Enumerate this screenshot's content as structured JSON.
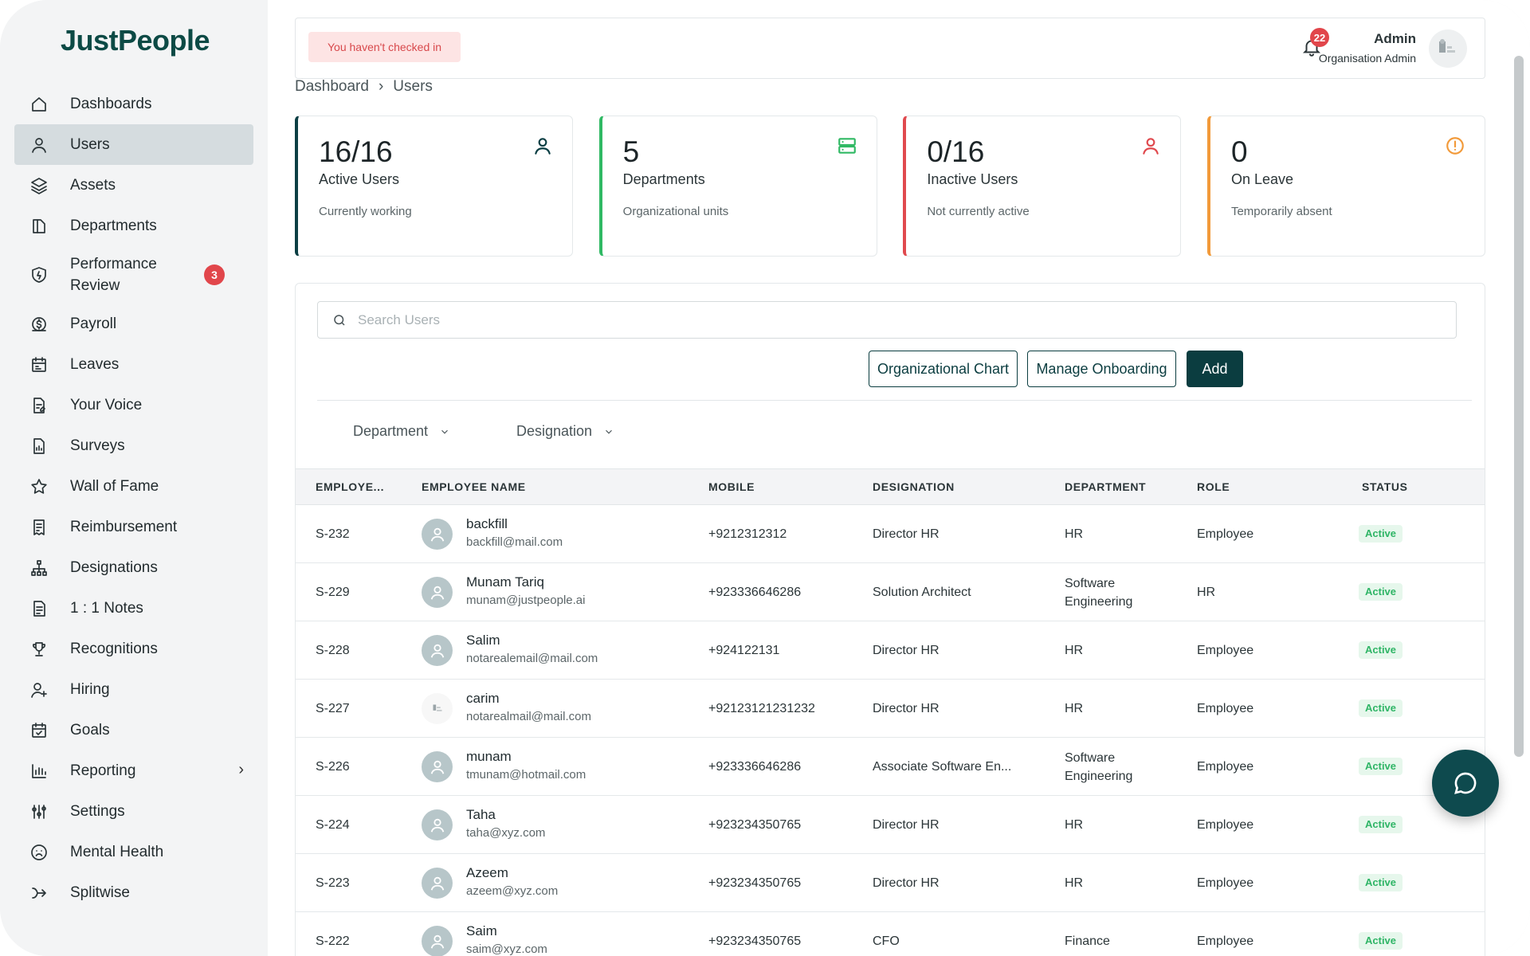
{
  "brand": {
    "name": "JustPeople",
    "color": "#0c4a45"
  },
  "sidebar": {
    "items": [
      {
        "label": "Dashboards",
        "icon": "home-icon"
      },
      {
        "label": "Users",
        "icon": "user-icon",
        "active": true
      },
      {
        "label": "Assets",
        "icon": "layers-icon"
      },
      {
        "label": "Departments",
        "icon": "book-icon"
      },
      {
        "label": "Performance Review",
        "icon": "shield-icon",
        "badge": "3"
      },
      {
        "label": "Payroll",
        "icon": "dollar-icon"
      },
      {
        "label": "Leaves",
        "icon": "calendar-icon"
      },
      {
        "label": "Your Voice",
        "icon": "document-edit-icon"
      },
      {
        "label": "Surveys",
        "icon": "document-chart-icon"
      },
      {
        "label": "Wall of Fame",
        "icon": "star-icon"
      },
      {
        "label": "Reimbursement",
        "icon": "receipt-icon"
      },
      {
        "label": "Designations",
        "icon": "hierarchy-icon"
      },
      {
        "label": "1 : 1 Notes",
        "icon": "notes-icon"
      },
      {
        "label": "Recognitions",
        "icon": "trophy-icon"
      },
      {
        "label": "Hiring",
        "icon": "user-plus-icon"
      },
      {
        "label": "Goals",
        "icon": "calendar-check-icon"
      },
      {
        "label": "Reporting",
        "icon": "bar-chart-icon",
        "chevron": "›"
      },
      {
        "label": "Settings",
        "icon": "sliders-icon"
      },
      {
        "label": "Mental Health",
        "icon": "sad-face-icon"
      },
      {
        "label": "Splitwise",
        "icon": "split-icon"
      }
    ]
  },
  "topbar": {
    "checkin_text": "You haven't checked in",
    "notification_count": "22",
    "user_name": "Admin",
    "user_role": "Organisation Admin"
  },
  "breadcrumb": {
    "root": "Dashboard",
    "separator": "›",
    "current": "Users"
  },
  "stats": [
    {
      "value": "16/16",
      "title": "Active Users",
      "sub": "Currently working",
      "color": "#0c3f44",
      "icon": "user-icon"
    },
    {
      "value": "5",
      "title": "Departments",
      "sub": "Organizational units",
      "color": "#30b964",
      "icon": "server-icon"
    },
    {
      "value": "0/16",
      "title": "Inactive Users",
      "sub": "Not currently active",
      "color": "#e0494e",
      "icon": "user-icon"
    },
    {
      "value": "0",
      "title": "On Leave",
      "sub": "Temporarily absent",
      "color": "#f29a3a",
      "icon": "alert-circle-icon"
    }
  ],
  "search": {
    "placeholder": "Search Users",
    "value": ""
  },
  "actions": {
    "org_chart": "Organizational Chart",
    "onboarding": "Manage Onboarding",
    "add": "Add"
  },
  "filters": {
    "department": "Department",
    "designation": "Designation"
  },
  "table": {
    "headers": {
      "id": "EMPLOYE...",
      "name": "EMPLOYEE NAME",
      "mobile": "MOBILE",
      "designation": "DESIGNATION",
      "department": "DEPARTMENT",
      "role": "ROLE",
      "status": "STATUS"
    },
    "rows": [
      {
        "id": "S-232",
        "name": "backfill",
        "email": "backfill@mail.com",
        "mobile": "+9212312312",
        "designation": "Director HR",
        "department": "HR",
        "role": "Employee",
        "status": "Active"
      },
      {
        "id": "S-229",
        "name": "Munam Tariq",
        "email": "munam@justpeople.ai",
        "mobile": "+923336646286",
        "designation": "Solution Architect",
        "department": "Software Engineering",
        "role": "HR",
        "status": "Active"
      },
      {
        "id": "S-228",
        "name": "Salim",
        "email": "notarealemail@mail.com",
        "mobile": "+924122131",
        "designation": "Director HR",
        "department": "HR",
        "role": "Employee",
        "status": "Active"
      },
      {
        "id": "S-227",
        "name": "carim",
        "email": "notarealmail@mail.com",
        "mobile": "+92123121231232",
        "designation": "Director HR",
        "department": "HR",
        "role": "Employee",
        "status": "Active",
        "photo": true
      },
      {
        "id": "S-226",
        "name": "munam",
        "email": "tmunam@hotmail.com",
        "mobile": "+923336646286",
        "designation": "Associate Software En...",
        "department": "Software Engineering",
        "role": "Employee",
        "status": "Active"
      },
      {
        "id": "S-224",
        "name": "Taha",
        "email": "taha@xyz.com",
        "mobile": "+923234350765",
        "designation": "Director HR",
        "department": "HR",
        "role": "Employee",
        "status": "Active"
      },
      {
        "id": "S-223",
        "name": "Azeem",
        "email": "azeem@xyz.com",
        "mobile": "+923234350765",
        "designation": "Director HR",
        "department": "HR",
        "role": "Employee",
        "status": "Active"
      },
      {
        "id": "S-222",
        "name": "Saim",
        "email": "saim@xyz.com",
        "mobile": "+923234350765",
        "designation": "CFO",
        "department": "Finance",
        "role": "Employee",
        "status": "Active"
      }
    ]
  },
  "colors": {
    "accent": "#0b3d40",
    "active_status": "#2fb566",
    "badge": "#e1464b"
  }
}
